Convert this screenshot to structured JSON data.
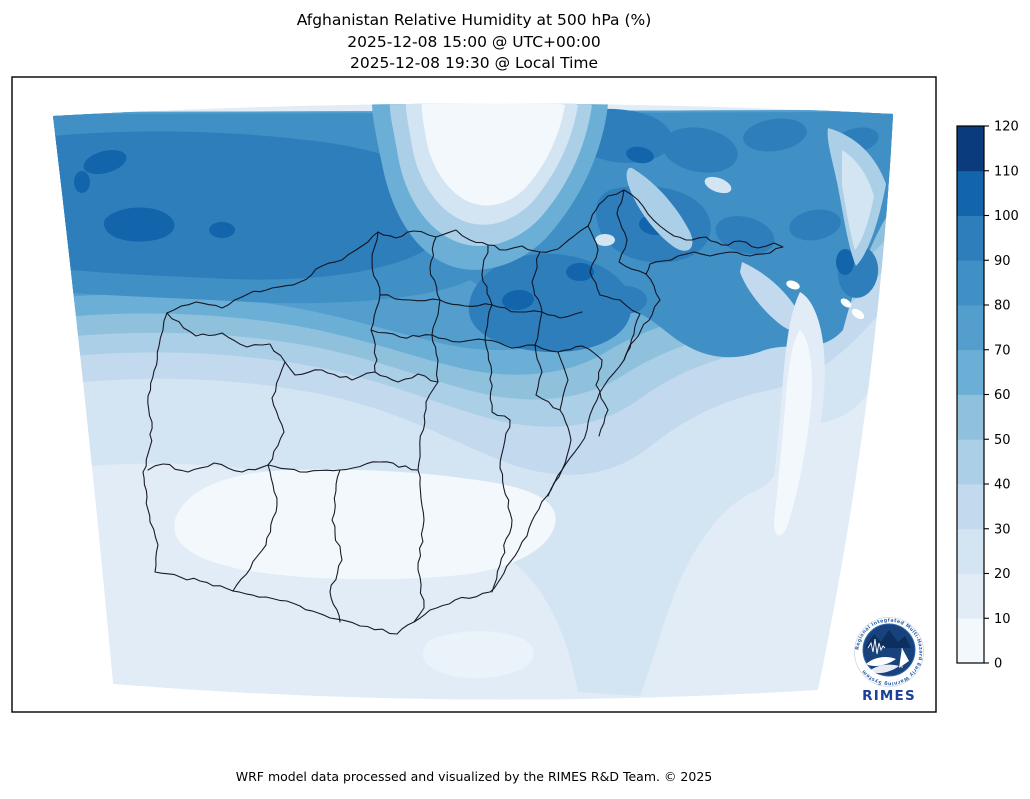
{
  "title": {
    "line1": "Afghanistan Relative Humidity at 500 hPa (%)",
    "line2": "2025-12-08 15:00 @ UTC+00:00",
    "line3": "2025-12-08 19:30 @ Local Time"
  },
  "footer": {
    "credit": "WRF model data processed and visualized by the RIMES R&D Team. © 2025"
  },
  "colorbar": {
    "min": 0,
    "max": 120,
    "tick_step": 10,
    "ticks": [
      0,
      10,
      20,
      30,
      40,
      50,
      60,
      70,
      80,
      90,
      100,
      110,
      120
    ],
    "band_colors_low_to_high": [
      "#f3f8fd",
      "#e1ecf7",
      "#d3e4f3",
      "#c2d9ee",
      "#abcfe6",
      "#8fc1dd",
      "#6cafd6",
      "#539ecc",
      "#4090c5",
      "#2e7ebc",
      "#1264ab",
      "#0a3b7d"
    ],
    "offscale_color": "#ffffff",
    "outline_color": "#000000"
  },
  "map": {
    "region": "Afghanistan",
    "variable": "Relative Humidity",
    "level": "500 hPa",
    "units": "%",
    "frame_color": "#000000",
    "boundary_color": "#10101c",
    "background": "#ffffff"
  },
  "logo": {
    "wordmark": "RIMES",
    "ring_text": "Regional Integrated Multi-Hazard Early Warning System",
    "disc_color": "#17427c",
    "accent_color": "#0c2f5e"
  },
  "chart_data": {
    "type": "heatmap",
    "subtype": "filled_contour_map",
    "title": "Afghanistan Relative Humidity at 500 hPa (%)",
    "valid_time_utc": "2025-12-08 15:00 @ UTC+00:00",
    "valid_time_local": "2025-12-08 19:30 @ Local Time",
    "colormap": "Blues",
    "contour_levels": [
      0,
      10,
      20,
      30,
      40,
      50,
      60,
      70,
      80,
      90,
      100,
      110,
      120
    ],
    "legend_position": "right",
    "units": "%",
    "regional_values_estimated_pct": {
      "northwest_band": 90,
      "far_north_edge": 80,
      "north_center": 95,
      "northeast_mountains": 90,
      "northeast_local_maxima": 105,
      "top_center_dry_wedge": 5,
      "kabul_east_region": 95,
      "west": 45,
      "center": 65,
      "south_center": 25,
      "southwest_desert": 5,
      "southeast": 25,
      "bottom_right_corner": 15
    }
  }
}
